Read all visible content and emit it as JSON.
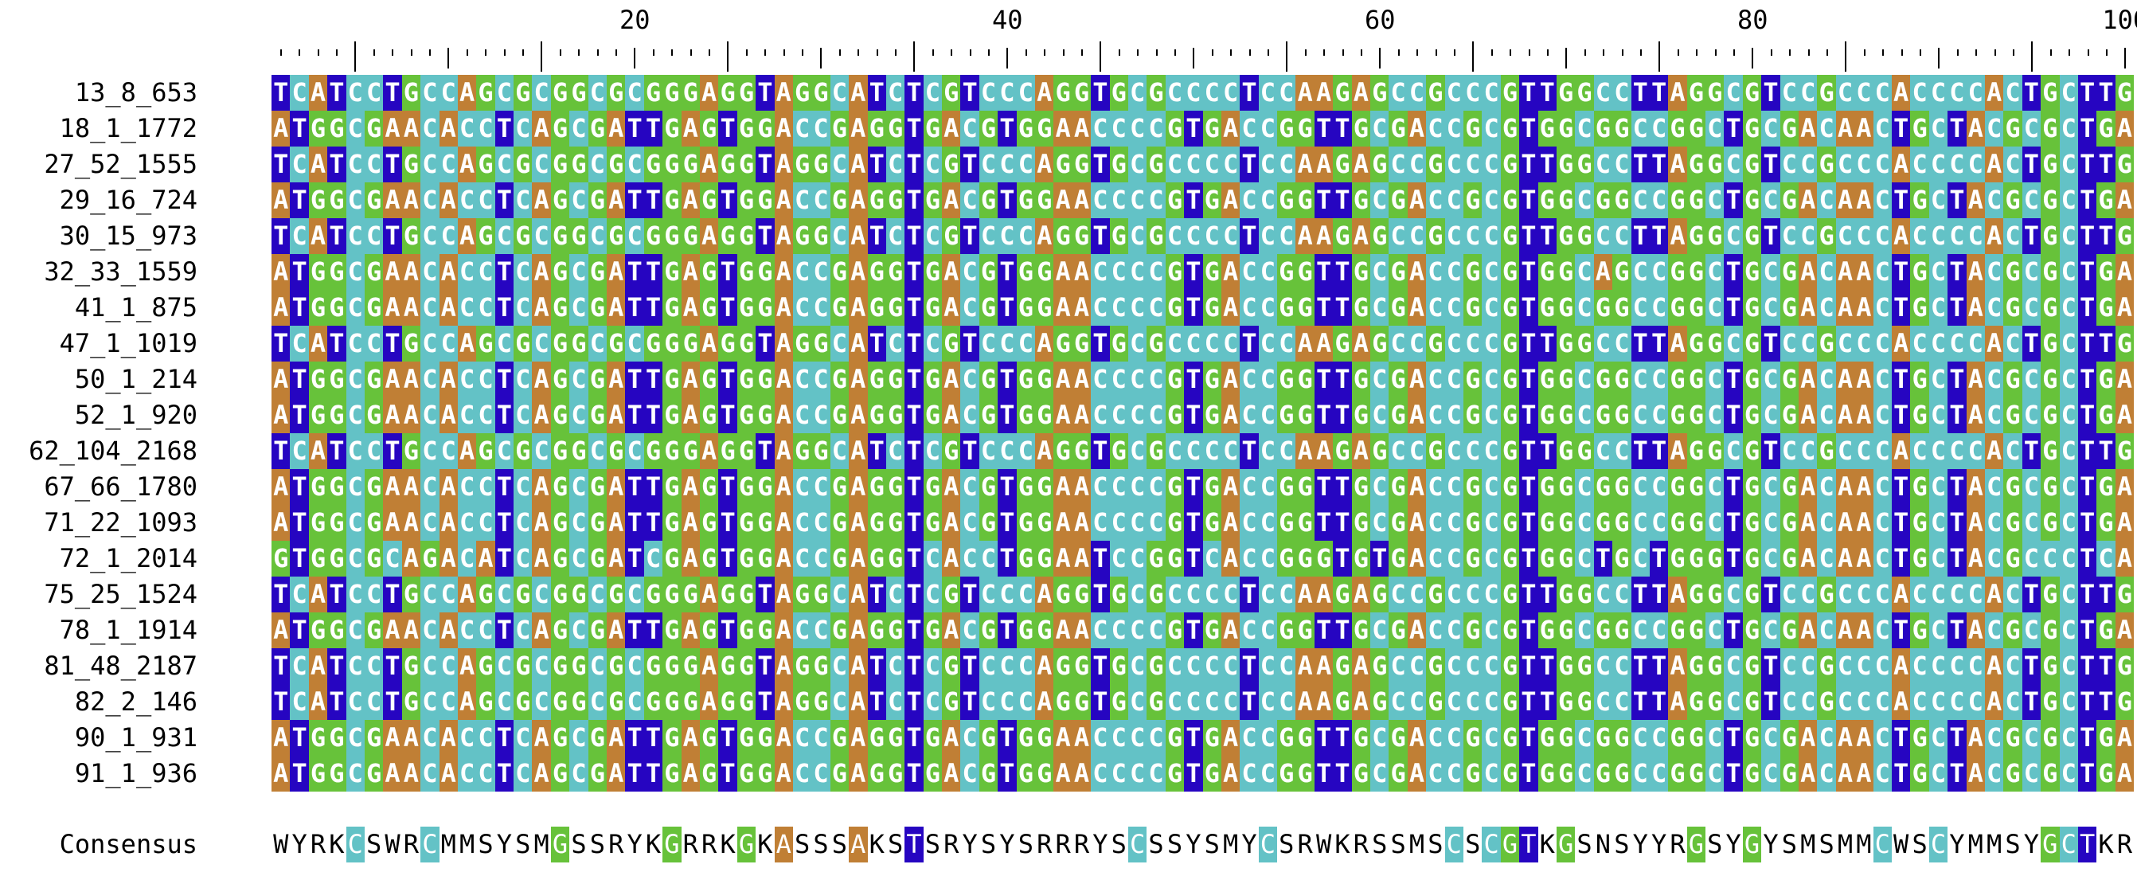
{
  "ruler": {
    "labels": [
      "20",
      "40",
      "60",
      "80",
      "100"
    ]
  },
  "colors": {
    "A": "#c07f35",
    "C": "#63c2c6",
    "G": "#67c23a",
    "T": "#2605c1"
  },
  "sequences": [
    {
      "name": "13_8_653",
      "seq": "TCATCCTGCCAGCGCGGCGCGGGAGGTAGGCATCTCGTCCCAGGTGCGCCCCTCCAAGAGCCGCCCGTTGGCCTTAGGCGTCCGCCCACCCCACTGCTTG"
    },
    {
      "name": "18_1_1772",
      "seq": "ATGGCGAACACCTCAGCGATTGAGTGGACCGAGGTGACGTGGAACCCCGTGACCGGTTGCGACCGCGTGGCGGCCGGCTGCGACAACTGCTACGCGCTGA"
    },
    {
      "name": "27_52_1555",
      "seq": "TCATCCTGCCAGCGCGGCGCGGGAGGTAGGCATCTCGTCCCAGGTGCGCCCCTCCAAGAGCCGCCCGTTGGCCTTAGGCGTCCGCCCACCCCACTGCTTG"
    },
    {
      "name": "29_16_724",
      "seq": "ATGGCGAACACCTCAGCGATTGAGTGGACCGAGGTGACGTGGAACCCCGTGACCGGTTGCGACCGCGTGGCGGCCGGCTGCGACAACTGCTACGCGCTGA"
    },
    {
      "name": "30_15_973",
      "seq": "TCATCCTGCCAGCGCGGCGCGGGAGGTAGGCATCTCGTCCCAGGTGCGCCCCTCCAAGAGCCGCCCGTTGGCCTTAGGCGTCCGCCCACCCCACTGCTTG"
    },
    {
      "name": "32_33_1559",
      "seq": "ATGGCGAACACCTCAGCGATTGAGTGGACCGAGGTGACGTGGAACCCCGTGACCGGTTGCGACCGCGTGGCAGCCGGCTGCGACAACTGCTACGCGCTGA"
    },
    {
      "name": "41_1_875",
      "seq": "ATGGCGAACACCTCAGCGATTGAGTGGACCGAGGTGACGTGGAACCCCGTGACCGGTTGCGACCGCGTGGCGGCCGGCTGCGACAACTGCTACGCGCTGA"
    },
    {
      "name": "47_1_1019",
      "seq": "TCATCCTGCCAGCGCGGCGCGGGAGGTAGGCATCTCGTCCCAGGTGCGCCCCTCCAAGAGCCGCCCGTTGGCCTTAGGCGTCCGCCCACCCCACTGCTTG"
    },
    {
      "name": "50_1_214",
      "seq": "ATGGCGAACACCTCAGCGATTGAGTGGACCGAGGTGACGTGGAACCCCGTGACCGGTTGCGACCGCGTGGCGGCCGGCTGCGACAACTGCTACGCGCTGA"
    },
    {
      "name": "52_1_920",
      "seq": "ATGGCGAACACCTCAGCGATTGAGTGGACCGAGGTGACGTGGAACCCCGTGACCGGTTGCGACCGCGTGGCGGCCGGCTGCGACAACTGCTACGCGCTGA"
    },
    {
      "name": "62_104_2168",
      "seq": "TCATCCTGCCAGCGCGGCGCGGGAGGTAGGCATCTCGTCCCAGGTGCGCCCCTCCAAGAGCCGCCCGTTGGCCTTAGGCGTCCGCCCACCCCACTGCTTG"
    },
    {
      "name": "67_66_1780",
      "seq": "ATGGCGAACACCTCAGCGATTGAGTGGACCGAGGTGACGTGGAACCCCGTGACCGGTTGCGACCGCGTGGCGGCCGGCTGCGACAACTGCTACGCGCTGA"
    },
    {
      "name": "71_22_1093",
      "seq": "ATGGCGAACACCTCAGCGATTGAGTGGACCGAGGTGACGTGGAACCCCGTGACCGGTTGCGACCGCGTGGCGGCCGGCTGCGACAACTGCTACGCGCTGA"
    },
    {
      "name": "72_1_2014",
      "seq": "GTGGCGCAGACATCAGCGATCGAGTGGACCGAGGTCACCTGGAATCCGGTCACCGGGTGTGACCGCGTGGCTGCTGGGTGCGACAACTGCTACGCCCTCA"
    },
    {
      "name": "75_25_1524",
      "seq": "TCATCCTGCCAGCGCGGCGCGGGAGGTAGGCATCTCGTCCCAGGTGCGCCCCTCCAAGAGCCGCCCGTTGGCCTTAGGCGTCCGCCCACCCCACTGCTTG"
    },
    {
      "name": "78_1_1914",
      "seq": "ATGGCGAACACCTCAGCGATTGAGTGGACCGAGGTGACGTGGAACCCCGTGACCGGTTGCGACCGCGTGGCGGCCGGCTGCGACAACTGCTACGCGCTGA"
    },
    {
      "name": "81_48_2187",
      "seq": "TCATCCTGCCAGCGCGGCGCGGGAGGTAGGCATCTCGTCCCAGGTGCGCCCCTCCAAGAGCCGCCCGTTGGCCTTAGGCGTCCGCCCACCCCACTGCTTG"
    },
    {
      "name": "82_2_146",
      "seq": "TCATCCTGCCAGCGCGGCGCGGGAGGTAGGCATCTCGTCCCAGGTGCGCCCCTCCAAGAGCCGCCCGTTGGCCTTAGGCGTCCGCCCACCCCACTGCTTG"
    },
    {
      "name": "90_1_931",
      "seq": "ATGGCGAACACCTCAGCGATTGAGTGGACCGAGGTGACGTGGAACCCCGTGACCGGTTGCGACCGCGTGGCGGCCGGCTGCGACAACTGCTACGCGCTGA"
    },
    {
      "name": "91_1_936",
      "seq": "ATGGCGAACACCTCAGCGATTGAGTGGACCGAGGTGACGTGGAACCCCGTGACCGGTTGCGACCGCGTGGCGGCCGGCTGCGACAACTGCTACGCGCTGA"
    }
  ],
  "consensus": {
    "label": "Consensus",
    "seq": "WYRKCSWRCMMSYSMGSSRYKGRRKGKASSSAKSTSRYSYSRRRYSCSSYSMYCSRWKRSSMSCSCGTKGSNSYYRGSYGYSMSMMCWSCYMMSYGCTKRS"
  }
}
